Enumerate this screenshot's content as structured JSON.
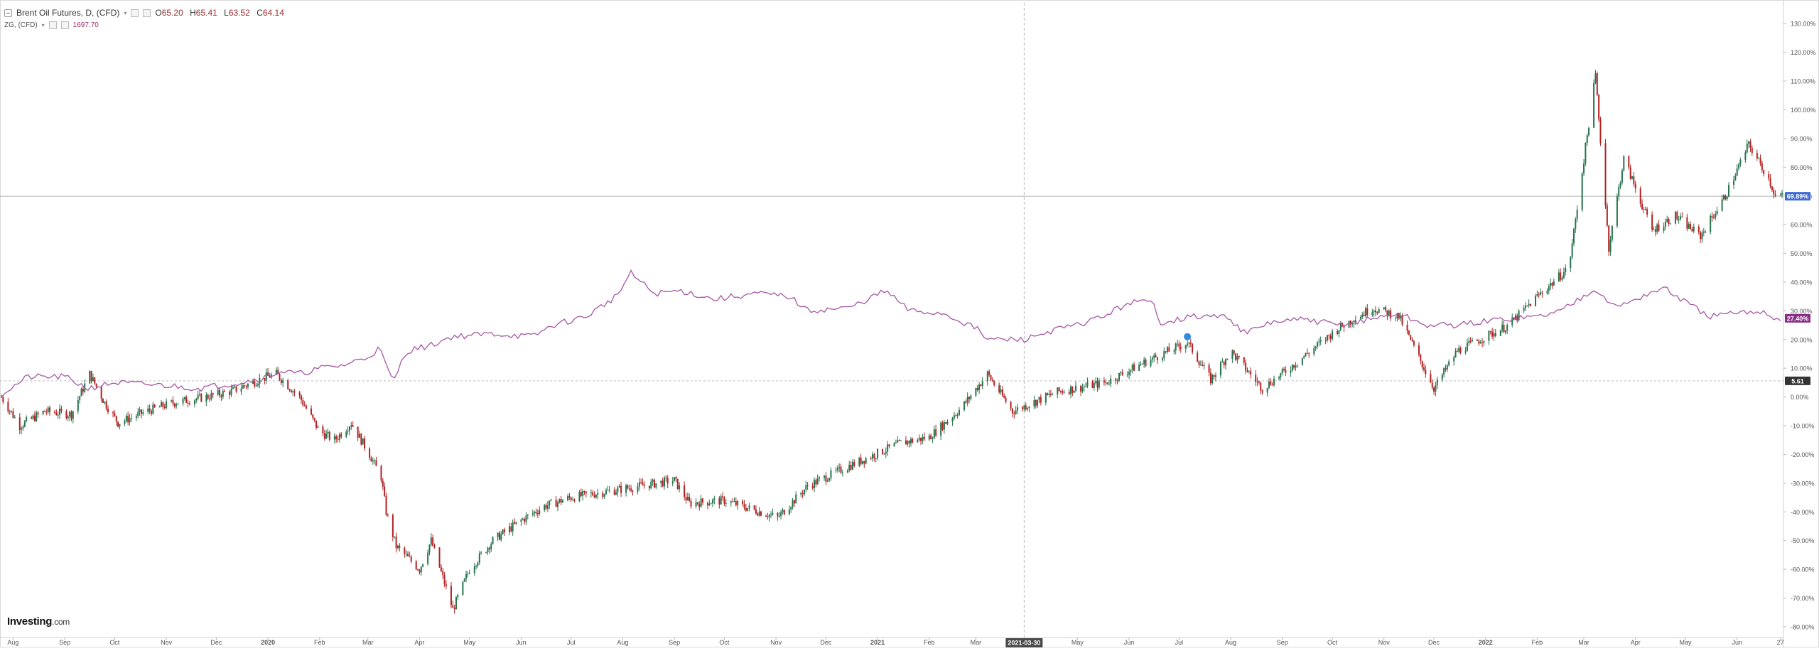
{
  "legend": {
    "main_title": "Brent Oil Futures, D, (CFD)",
    "open_label": "O",
    "open": "65.20",
    "high_label": "H",
    "high": "65.41",
    "low_label": "L",
    "low": "63.52",
    "close_label": "C",
    "close": "64.14",
    "compare_title": "ZG, (CFD)",
    "compare_value": "1697.70"
  },
  "logo": {
    "brand": "Investing",
    "suffix": ".com"
  },
  "colors": {
    "up": "#26734d",
    "down": "#b22222",
    "compare": "#a557a5",
    "last_badge": "#3d6bd6",
    "compare_badge": "#8a2d8a",
    "base_badge": "#333333",
    "grid": "#e6e6e6"
  },
  "chart_data": {
    "type": "line",
    "y_unit": "%",
    "ylim": [
      -82,
      134
    ],
    "y_ticks": [
      "130.00%",
      "120.00%",
      "110.00%",
      "100.00%",
      "90.00%",
      "80.00%",
      "70.00%",
      "60.00%",
      "50.00%",
      "40.00%",
      "30.00%",
      "20.00%",
      "10.00%",
      "0.00%",
      "-10.00%",
      "-20.00%",
      "-30.00%",
      "-40.00%",
      "-50.00%",
      "-60.00%",
      "-70.00%",
      "-80.00%"
    ],
    "y_tick_values": [
      130,
      120,
      110,
      100,
      90,
      80,
      70,
      60,
      50,
      40,
      30,
      20,
      10,
      0,
      -10,
      -20,
      -30,
      -40,
      -50,
      -60,
      -70,
      -80
    ],
    "x_ticks": [
      {
        "label": "Aug",
        "date": "2019-08-01"
      },
      {
        "label": "Sep",
        "date": "2019-09-01"
      },
      {
        "label": "Oct",
        "date": "2019-10-01"
      },
      {
        "label": "Nov",
        "date": "2019-11-01"
      },
      {
        "label": "Dec",
        "date": "2019-12-01"
      },
      {
        "label": "2020",
        "date": "2020-01-01"
      },
      {
        "label": "Feb",
        "date": "2020-02-01"
      },
      {
        "label": "Mar",
        "date": "2020-03-01"
      },
      {
        "label": "Apr",
        "date": "2020-04-01"
      },
      {
        "label": "May",
        "date": "2020-05-01"
      },
      {
        "label": "Jun",
        "date": "2020-06-01"
      },
      {
        "label": "Jul",
        "date": "2020-07-01"
      },
      {
        "label": "Aug",
        "date": "2020-08-01"
      },
      {
        "label": "Sep",
        "date": "2020-09-01"
      },
      {
        "label": "Oct",
        "date": "2020-10-01"
      },
      {
        "label": "Nov",
        "date": "2020-11-01"
      },
      {
        "label": "Dec",
        "date": "2020-12-01"
      },
      {
        "label": "2021",
        "date": "2021-01-01"
      },
      {
        "label": "Feb",
        "date": "2021-02-01"
      },
      {
        "label": "Mar",
        "date": "2021-03-01"
      },
      {
        "label": "May",
        "date": "2021-05-01"
      },
      {
        "label": "Jun",
        "date": "2021-06-01"
      },
      {
        "label": "Jul",
        "date": "2021-07-01"
      },
      {
        "label": "Aug",
        "date": "2021-08-01"
      },
      {
        "label": "Sep",
        "date": "2021-09-01"
      },
      {
        "label": "Oct",
        "date": "2021-10-01"
      },
      {
        "label": "Nov",
        "date": "2021-11-01"
      },
      {
        "label": "Dec",
        "date": "2021-12-01"
      },
      {
        "label": "2022",
        "date": "2022-01-01"
      },
      {
        "label": "Feb",
        "date": "2022-02-01"
      },
      {
        "label": "Mar",
        "date": "2022-03-01"
      },
      {
        "label": "Apr",
        "date": "2022-04-01"
      },
      {
        "label": "May",
        "date": "2022-05-01"
      },
      {
        "label": "Jun",
        "date": "2022-06-01"
      },
      {
        "label": "27",
        "date": "2022-06-27"
      }
    ],
    "x_range": [
      "2019-07-25",
      "2022-06-28"
    ],
    "crosshair": {
      "date": "2021-03-30",
      "label": "2021-03-30",
      "y": 69.89
    },
    "badges": [
      {
        "label": "69.89%",
        "y": 69.89,
        "role": "last"
      },
      {
        "label": "27.40%",
        "y": 27.4,
        "role": "compare"
      },
      {
        "label": "5.61",
        "y": 5.61,
        "role": "base"
      }
    ],
    "series": [
      {
        "name": "Brent Oil Futures, D, (CFD)",
        "style": "candles",
        "points": [
          [
            "2019-07-25",
            0
          ],
          [
            "2019-08-05",
            -10
          ],
          [
            "2019-08-20",
            -5
          ],
          [
            "2019-09-05",
            -6
          ],
          [
            "2019-09-16",
            8
          ],
          [
            "2019-09-25",
            -2
          ],
          [
            "2019-10-03",
            -9
          ],
          [
            "2019-10-20",
            -5
          ],
          [
            "2019-11-05",
            -2
          ],
          [
            "2019-11-25",
            0
          ],
          [
            "2019-12-10",
            2
          ],
          [
            "2019-12-31",
            7
          ],
          [
            "2020-01-06",
            8
          ],
          [
            "2020-01-20",
            0
          ],
          [
            "2020-02-01",
            -12
          ],
          [
            "2020-02-10",
            -15
          ],
          [
            "2020-02-20",
            -9
          ],
          [
            "2020-03-02",
            -20
          ],
          [
            "2020-03-09",
            -28
          ],
          [
            "2020-03-12",
            -40
          ],
          [
            "2020-03-18",
            -52
          ],
          [
            "2020-04-01",
            -60
          ],
          [
            "2020-04-08",
            -50
          ],
          [
            "2020-04-21",
            -74
          ],
          [
            "2020-05-01",
            -60
          ],
          [
            "2020-05-15",
            -50
          ],
          [
            "2020-06-01",
            -43
          ],
          [
            "2020-06-15",
            -38
          ],
          [
            "2020-07-01",
            -35
          ],
          [
            "2020-08-01",
            -32
          ],
          [
            "2020-09-01",
            -29
          ],
          [
            "2020-09-10",
            -37
          ],
          [
            "2020-10-01",
            -36
          ],
          [
            "2020-11-02",
            -42
          ],
          [
            "2020-11-20",
            -31
          ],
          [
            "2020-12-15",
            -24
          ],
          [
            "2021-01-15",
            -16
          ],
          [
            "2021-02-01",
            -14
          ],
          [
            "2021-02-20",
            -4
          ],
          [
            "2021-03-08",
            8
          ],
          [
            "2021-03-23",
            -5
          ],
          [
            "2021-04-20",
            2
          ],
          [
            "2021-05-18",
            5
          ],
          [
            "2021-06-10",
            12
          ],
          [
            "2021-07-06",
            19
          ],
          [
            "2021-07-20",
            6
          ],
          [
            "2021-08-01",
            16
          ],
          [
            "2021-08-20",
            3
          ],
          [
            "2021-09-05",
            10
          ],
          [
            "2021-10-05",
            24
          ],
          [
            "2021-10-25",
            31
          ],
          [
            "2021-11-10",
            28
          ],
          [
            "2021-12-01",
            3
          ],
          [
            "2021-12-15",
            16
          ],
          [
            "2022-01-15",
            25
          ],
          [
            "2022-02-01",
            35
          ],
          [
            "2022-02-20",
            45
          ],
          [
            "2022-03-08",
            112
          ],
          [
            "2022-03-16",
            52
          ],
          [
            "2022-03-25",
            83
          ],
          [
            "2022-04-11",
            58
          ],
          [
            "2022-04-25",
            63
          ],
          [
            "2022-05-10",
            56
          ],
          [
            "2022-05-25",
            70
          ],
          [
            "2022-06-08",
            88
          ],
          [
            "2022-06-20",
            76
          ],
          [
            "2022-06-24",
            69.89
          ]
        ]
      },
      {
        "name": "ZG, (CFD)",
        "style": "line",
        "points": [
          [
            "2019-07-25",
            1
          ],
          [
            "2019-08-10",
            7
          ],
          [
            "2019-09-01",
            7
          ],
          [
            "2019-09-15",
            3
          ],
          [
            "2019-10-01",
            5
          ],
          [
            "2019-11-01",
            4
          ],
          [
            "2019-11-20",
            3
          ],
          [
            "2019-12-15",
            5
          ],
          [
            "2020-01-01",
            7
          ],
          [
            "2020-01-08",
            9
          ],
          [
            "2020-01-20",
            8
          ],
          [
            "2020-02-01",
            10
          ],
          [
            "2020-02-15",
            11
          ],
          [
            "2020-03-01",
            14
          ],
          [
            "2020-03-08",
            17
          ],
          [
            "2020-03-16",
            5
          ],
          [
            "2020-03-24",
            16
          ],
          [
            "2020-04-08",
            18
          ],
          [
            "2020-04-20",
            21
          ],
          [
            "2020-05-15",
            22
          ],
          [
            "2020-06-08",
            21
          ],
          [
            "2020-06-20",
            25
          ],
          [
            "2020-07-10",
            28
          ],
          [
            "2020-07-28",
            35
          ],
          [
            "2020-08-06",
            43
          ],
          [
            "2020-08-20",
            36
          ],
          [
            "2020-09-05",
            37
          ],
          [
            "2020-09-25",
            34
          ],
          [
            "2020-10-20",
            36
          ],
          [
            "2020-11-09",
            35
          ],
          [
            "2020-11-20",
            30
          ],
          [
            "2020-12-15",
            31
          ],
          [
            "2021-01-06",
            37
          ],
          [
            "2021-01-20",
            30
          ],
          [
            "2021-02-10",
            29
          ],
          [
            "2021-03-01",
            24
          ],
          [
            "2021-03-08",
            20
          ],
          [
            "2021-03-30",
            20
          ],
          [
            "2021-04-15",
            23
          ],
          [
            "2021-05-01",
            25
          ],
          [
            "2021-05-20",
            29
          ],
          [
            "2021-06-01",
            33
          ],
          [
            "2021-06-15",
            33
          ],
          [
            "2021-06-20",
            26
          ],
          [
            "2021-07-10",
            28
          ],
          [
            "2021-07-30",
            28
          ],
          [
            "2021-08-10",
            22
          ],
          [
            "2021-08-25",
            26
          ],
          [
            "2021-09-15",
            27
          ],
          [
            "2021-10-05",
            25
          ],
          [
            "2021-11-10",
            29
          ],
          [
            "2021-11-25",
            25
          ],
          [
            "2021-12-15",
            25
          ],
          [
            "2022-01-10",
            27
          ],
          [
            "2022-02-01",
            28
          ],
          [
            "2022-02-15",
            30
          ],
          [
            "2022-03-08",
            38
          ],
          [
            "2022-03-20",
            31
          ],
          [
            "2022-04-05",
            35
          ],
          [
            "2022-04-18",
            38
          ],
          [
            "2022-05-01",
            33
          ],
          [
            "2022-05-15",
            28
          ],
          [
            "2022-06-01",
            29
          ],
          [
            "2022-06-15",
            30
          ],
          [
            "2022-06-24",
            27.4
          ]
        ]
      }
    ]
  }
}
